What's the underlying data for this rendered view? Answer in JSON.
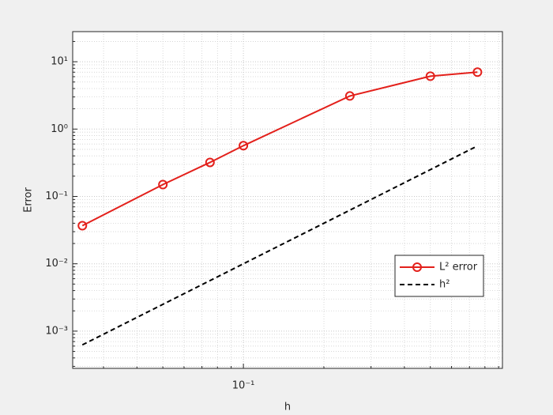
{
  "chart_data": {
    "type": "line",
    "xlabel": "h",
    "ylabel": "Error",
    "x": [
      0.025,
      0.05,
      0.075,
      0.1,
      0.25,
      0.5,
      0.75
    ],
    "series": [
      {
        "name": "L² error",
        "color": "#e3201b",
        "style": "solid",
        "marker": "circle",
        "values": [
          0.0368,
          0.15,
          0.32,
          0.567,
          3.1,
          6.1,
          7.0
        ]
      },
      {
        "name": "h²",
        "color": "#000000",
        "style": "dashed",
        "values": [
          0.000625,
          0.0025,
          0.005625,
          0.01,
          0.0625,
          0.25,
          0.5625
        ]
      }
    ],
    "xscale": "log",
    "yscale": "log",
    "xlim": [
      0.023,
      0.93
    ],
    "ylim": [
      0.00028,
      28
    ],
    "xticks": [
      {
        "value": 0.1,
        "label": "10⁻¹"
      }
    ],
    "yticks": [
      {
        "value": 0.001,
        "label": "10⁻³"
      },
      {
        "value": 0.01,
        "label": "10⁻²"
      },
      {
        "value": 0.1,
        "label": "10⁻¹"
      },
      {
        "value": 1,
        "label": "10⁰"
      },
      {
        "value": 10,
        "label": "10¹"
      }
    ],
    "grid": true,
    "minor_grid": true,
    "legend": "east"
  }
}
